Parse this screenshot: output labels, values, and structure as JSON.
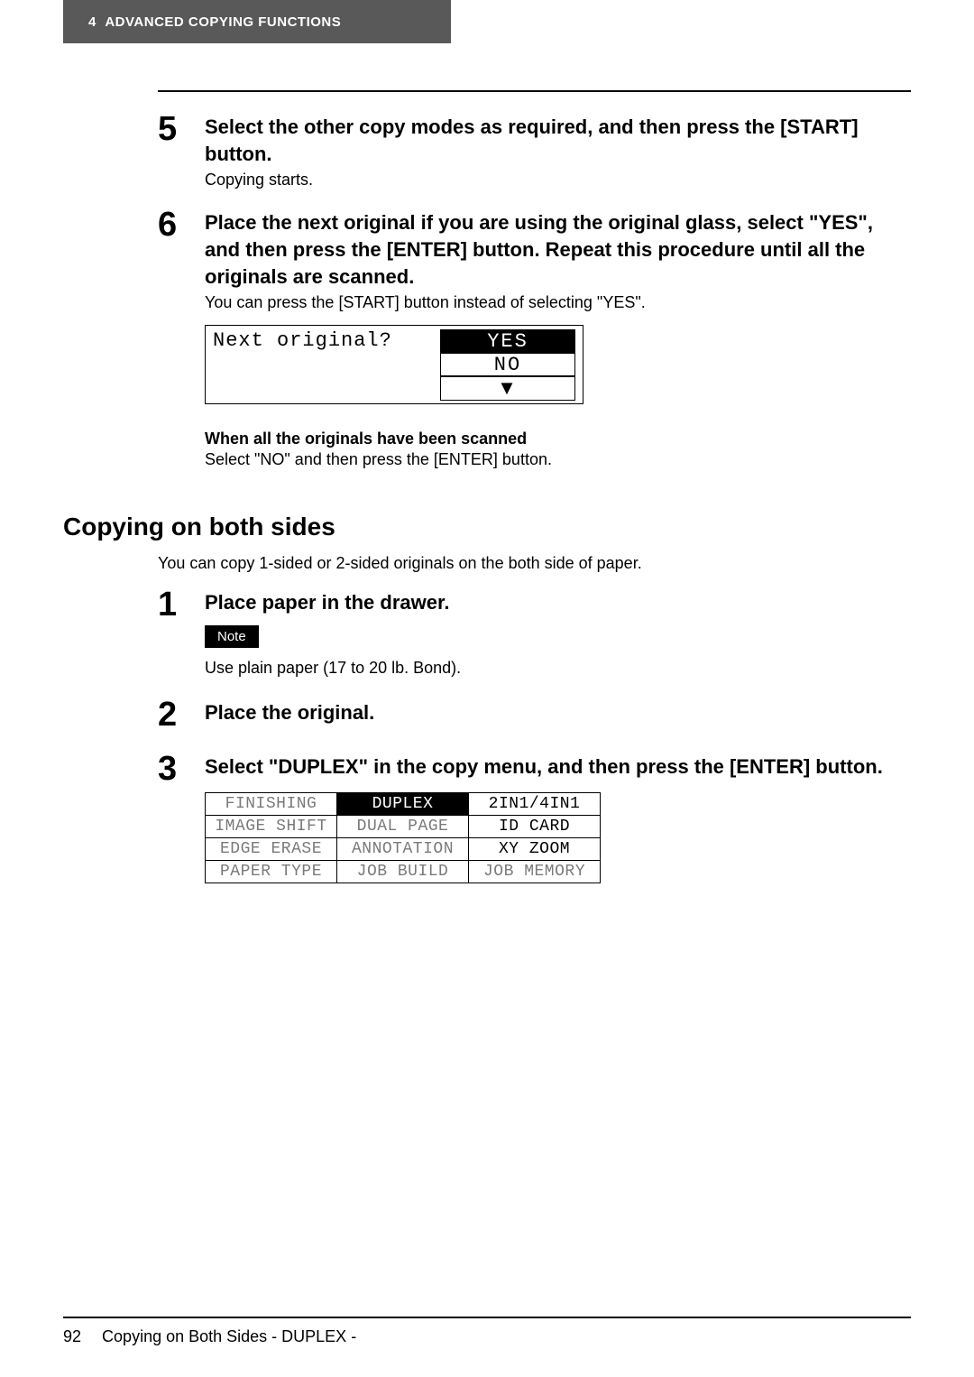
{
  "header": {
    "chapter_num": "4",
    "chapter_title": "ADVANCED COPYING FUNCTIONS"
  },
  "step5": {
    "num": "5",
    "title": "Select the other copy modes as required, and then press the [START] button.",
    "text": "Copying starts."
  },
  "step6": {
    "num": "6",
    "title": "Place the next original if you are using the original glass, select \"YES\", and then press the [ENTER] button. Repeat this procedure until all the originals are scanned.",
    "text": "You can press the [START] button instead of selecting \"YES\".",
    "lcd_prompt": "Next original?",
    "lcd_options": [
      "YES",
      "NO"
    ],
    "lcd_selected": 0,
    "lcd_arrow": "▼",
    "sub_bold": "When all the originals have been scanned",
    "sub_reg": "Select \"NO\" and then press the [ENTER] button."
  },
  "section": {
    "h2": "Copying on both sides",
    "intro": "You can copy 1-sided or 2-sided originals on the both side of paper."
  },
  "step1": {
    "num": "1",
    "title": "Place paper in the drawer.",
    "note_label": "Note",
    "note_text": "Use plain paper (17 to 20 lb. Bond)."
  },
  "step2": {
    "num": "2",
    "title": "Place the original."
  },
  "step3": {
    "num": "3",
    "title": "Select \"DUPLEX\" in the copy menu, and then press the [ENTER] button.",
    "menu": {
      "rows": [
        [
          "FINISHING",
          "DUPLEX",
          "2IN1/4IN1"
        ],
        [
          "IMAGE SHIFT",
          "DUAL PAGE",
          "ID CARD"
        ],
        [
          "EDGE ERASE",
          "ANNOTATION",
          "XY ZOOM"
        ],
        [
          "PAPER TYPE",
          "JOB BUILD",
          "JOB MEMORY"
        ]
      ],
      "selected_row": 0,
      "selected_col": 1,
      "black_text": [
        [
          0,
          2
        ],
        [
          1,
          2
        ],
        [
          2,
          2
        ]
      ]
    }
  },
  "footer": {
    "page_num": "92",
    "page_title": "Copying on Both Sides - DUPLEX -"
  },
  "colors": {
    "header_bg": "#595959",
    "text": "#000000",
    "grey_text": "#7a7a7a"
  }
}
